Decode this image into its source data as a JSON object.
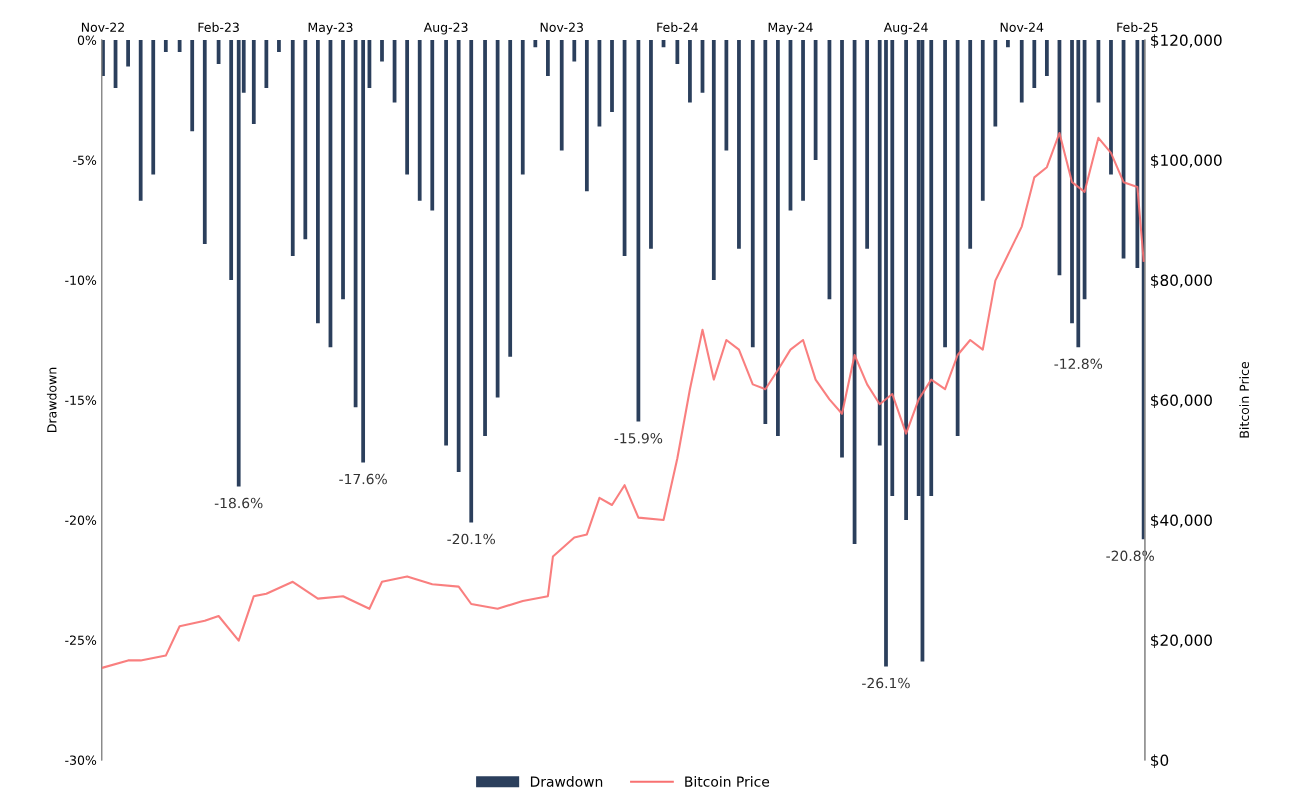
{
  "chart_data": {
    "type": "bar",
    "ylabel": "Drawdown",
    "y2label": "Bitcoin Price",
    "xlim": [
      "2022-10-31",
      "2025-02-07"
    ],
    "xticks": [
      {
        "value": "2022-11-01",
        "label": "Nov-22"
      },
      {
        "value": "2023-02-01",
        "label": "Feb-23"
      },
      {
        "value": "2023-05-01",
        "label": "May-23"
      },
      {
        "value": "2023-08-01",
        "label": "Aug-23"
      },
      {
        "value": "2023-11-01",
        "label": "Nov-23"
      },
      {
        "value": "2024-02-01",
        "label": "Feb-24"
      },
      {
        "value": "2024-05-01",
        "label": "May-24"
      },
      {
        "value": "2024-08-01",
        "label": "Aug-24"
      },
      {
        "value": "2024-11-01",
        "label": "Nov-24"
      },
      {
        "value": "2025-02-01",
        "label": "Feb-25"
      }
    ],
    "ylim": [
      -30,
      0
    ],
    "yticks": [
      {
        "value": -30,
        "label": "-30%"
      },
      {
        "value": -25,
        "label": "-25%"
      },
      {
        "value": -20,
        "label": "-20%"
      },
      {
        "value": -15,
        "label": "-15%"
      },
      {
        "value": -10,
        "label": "-10%"
      },
      {
        "value": -5,
        "label": "-5%"
      },
      {
        "value": 0,
        "label": "0%"
      }
    ],
    "y2lim": [
      0,
      120000
    ],
    "y2ticks": [
      {
        "value": 0,
        "label": "$0"
      },
      {
        "value": 20000,
        "label": "$20,000"
      },
      {
        "value": 40000,
        "label": "$40,000"
      },
      {
        "value": 60000,
        "label": "$60,000"
      },
      {
        "value": 80000,
        "label": "$80,000"
      },
      {
        "value": 100000,
        "label": "$100,000"
      },
      {
        "value": 120000,
        "label": "$120,000"
      }
    ],
    "legend": "bottom",
    "series": [
      {
        "name": "Drawdown",
        "color": "#2b3f5c",
        "x": [
          "2022-11-01",
          "2022-11-11",
          "2022-11-21",
          "2022-12-01",
          "2022-12-11",
          "2022-12-21",
          "2023-01-01",
          "2023-01-11",
          "2023-01-21",
          "2023-02-01",
          "2023-02-11",
          "2023-02-17",
          "2023-02-21",
          "2023-03-01",
          "2023-03-11",
          "2023-03-21",
          "2023-04-01",
          "2023-04-11",
          "2023-04-21",
          "2023-05-01",
          "2023-05-11",
          "2023-05-21",
          "2023-05-27",
          "2023-06-01",
          "2023-06-11",
          "2023-06-21",
          "2023-07-01",
          "2023-07-11",
          "2023-07-21",
          "2023-08-01",
          "2023-08-11",
          "2023-08-21",
          "2023-09-01",
          "2023-09-11",
          "2023-09-21",
          "2023-10-01",
          "2023-10-11",
          "2023-10-21",
          "2023-11-01",
          "2023-11-11",
          "2023-11-21",
          "2023-12-01",
          "2023-12-11",
          "2023-12-21",
          "2024-01-01",
          "2024-01-11",
          "2024-01-21",
          "2024-02-01",
          "2024-02-11",
          "2024-02-21",
          "2024-03-01",
          "2024-03-11",
          "2024-03-21",
          "2024-04-01",
          "2024-04-11",
          "2024-04-21",
          "2024-05-01",
          "2024-05-11",
          "2024-05-21",
          "2024-06-01",
          "2024-06-11",
          "2024-06-21",
          "2024-07-01",
          "2024-07-11",
          "2024-07-16",
          "2024-07-21",
          "2024-08-01",
          "2024-08-11",
          "2024-08-14",
          "2024-08-21",
          "2024-09-01",
          "2024-09-11",
          "2024-09-21",
          "2024-10-01",
          "2024-10-11",
          "2024-10-21",
          "2024-11-01",
          "2024-11-11",
          "2024-11-21",
          "2024-12-01",
          "2024-12-11",
          "2024-12-16",
          "2024-12-21",
          "2025-01-01",
          "2025-01-11",
          "2025-01-21",
          "2025-02-01",
          "2025-02-06"
        ],
        "values": [
          -1.5,
          -2.0,
          -1.1,
          -6.7,
          -5.6,
          -0.5,
          -0.5,
          -3.8,
          -8.5,
          -1.0,
          -10,
          -18.6,
          -2.2,
          -3.5,
          -2.0,
          -0.5,
          -9,
          -8.3,
          -11.8,
          -12.8,
          -10.8,
          -15.3,
          -17.6,
          -2.0,
          -0.9,
          -2.6,
          -5.6,
          -6.7,
          -7.1,
          -16.9,
          -18,
          -20.1,
          -16.5,
          -14.9,
          -13.2,
          -5.6,
          -0.3,
          -1.5,
          -4.6,
          -0.9,
          -6.3,
          -3.6,
          -3.0,
          -9,
          -15.9,
          -8.7,
          -0.3,
          -1.0,
          -2.6,
          -2.2,
          -10,
          -4.6,
          -8.7,
          -12.8,
          -16,
          -16.5,
          -7.1,
          -6.7,
          -5.0,
          -10.8,
          -17.4,
          -21,
          -8.7,
          -16.9,
          -26.1,
          -19,
          -20,
          -19,
          -25.9,
          -19,
          -12.8,
          -16.5,
          -8.7,
          -6.7,
          -3.6,
          -0.3,
          -2.6,
          -2.0,
          -1.5,
          -9.8,
          -11.8,
          -12.8,
          -10.8,
          -2.6,
          -5.6,
          -9.1,
          -9.5,
          -20.8
        ]
      },
      {
        "name": "Bitcoin Price",
        "type": "line",
        "axis": "y2",
        "color": "#f87171",
        "x": [
          "2022-11-01",
          "2022-11-21",
          "2022-12-01",
          "2022-12-21",
          "2023-01-01",
          "2023-01-21",
          "2023-02-01",
          "2023-02-17",
          "2023-03-01",
          "2023-03-11",
          "2023-04-01",
          "2023-04-21",
          "2023-05-11",
          "2023-06-01",
          "2023-06-11",
          "2023-07-01",
          "2023-07-21",
          "2023-08-11",
          "2023-08-21",
          "2023-09-11",
          "2023-10-01",
          "2023-10-21",
          "2023-10-25",
          "2023-11-11",
          "2023-11-21",
          "2023-12-01",
          "2023-12-11",
          "2023-12-21",
          "2024-01-01",
          "2024-01-21",
          "2024-02-01",
          "2024-02-11",
          "2024-02-21",
          "2024-03-01",
          "2024-03-11",
          "2024-03-21",
          "2024-04-01",
          "2024-04-11",
          "2024-04-21",
          "2024-05-01",
          "2024-05-11",
          "2024-05-21",
          "2024-06-01",
          "2024-06-11",
          "2024-06-21",
          "2024-07-01",
          "2024-07-11",
          "2024-07-21",
          "2024-08-01",
          "2024-08-11",
          "2024-08-21",
          "2024-09-01",
          "2024-09-11",
          "2024-09-21",
          "2024-10-01",
          "2024-10-11",
          "2024-11-01",
          "2024-11-11",
          "2024-11-21",
          "2024-12-01",
          "2024-12-11",
          "2024-12-21",
          "2025-01-01",
          "2025-01-11",
          "2025-01-21",
          "2025-02-01",
          "2025-02-06"
        ],
        "values": [
          15400,
          16600,
          16600,
          17400,
          22300,
          23200,
          24000,
          19900,
          27300,
          27700,
          29700,
          26900,
          27300,
          25200,
          29700,
          30600,
          29300,
          28900,
          26000,
          25200,
          26500,
          27300,
          33900,
          37100,
          37600,
          43700,
          42500,
          45800,
          40400,
          40000,
          50300,
          61800,
          71700,
          63400,
          70000,
          68400,
          62600,
          61800,
          65000,
          68400,
          70000,
          63400,
          60100,
          57700,
          67500,
          62600,
          59300,
          61000,
          54400,
          60100,
          63400,
          61800,
          67500,
          70000,
          68400,
          79900,
          88900,
          97100,
          98800,
          104500,
          96300,
          94700,
          103700,
          101200,
          96300,
          95500,
          83200
        ]
      }
    ],
    "annotations": [
      {
        "text": "-18.6%",
        "x": "2023-02-17",
        "y": -18.6
      },
      {
        "text": "-17.6%",
        "x": "2023-05-27",
        "y": -17.6
      },
      {
        "text": "-20.1%",
        "x": "2023-08-21",
        "y": -20.1
      },
      {
        "text": "-15.9%",
        "x": "2024-01-01",
        "y": -15.9
      },
      {
        "text": "-26.1%",
        "x": "2024-07-16",
        "y": -26.1
      },
      {
        "text": "-12.8%",
        "x": "2024-12-16",
        "y": -12.8
      },
      {
        "text": "-20.8%",
        "x": "2025-02-06",
        "y": -20.8
      }
    ]
  }
}
